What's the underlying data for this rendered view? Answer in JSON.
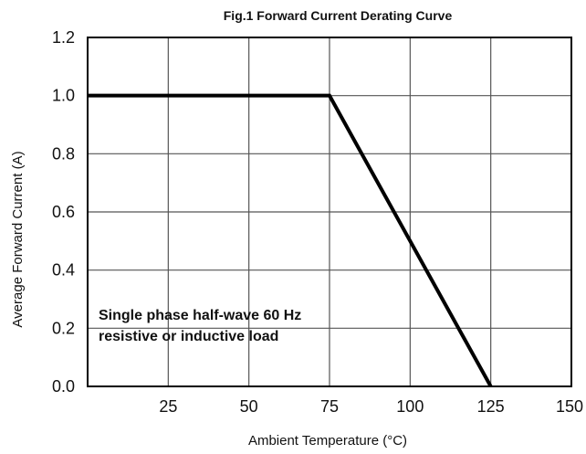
{
  "chart_data": {
    "type": "line",
    "title": "Fig.1  Forward Current Derating Curve",
    "xlabel": "Ambient  Temperature (°C)",
    "ylabel": "Average Forward Current (A)",
    "xlim": [
      0,
      150
    ],
    "ylim": [
      0,
      1.2
    ],
    "x_ticks": [
      25,
      50,
      75,
      100,
      125,
      150
    ],
    "x_tick_labels": [
      "25",
      "50",
      "75",
      "100",
      "125",
      "150"
    ],
    "y_ticks": [
      0,
      0.2,
      0.4,
      0.6,
      0.8,
      1.0,
      1.2
    ],
    "y_tick_labels": [
      "0.0",
      "0.2",
      "0.4",
      "0.6",
      "0.8",
      "1.0",
      "1.2"
    ],
    "grid": true,
    "series": [
      {
        "x": [
          0,
          75,
          125
        ],
        "y": [
          1.0,
          1.0,
          0.0
        ]
      }
    ],
    "annotation": {
      "line1": "Single phase half-wave 60 Hz",
      "line2": "resistive or inductive load"
    },
    "colors": {
      "line": "#000000",
      "grid": "#555555",
      "frame": "#000000"
    }
  }
}
